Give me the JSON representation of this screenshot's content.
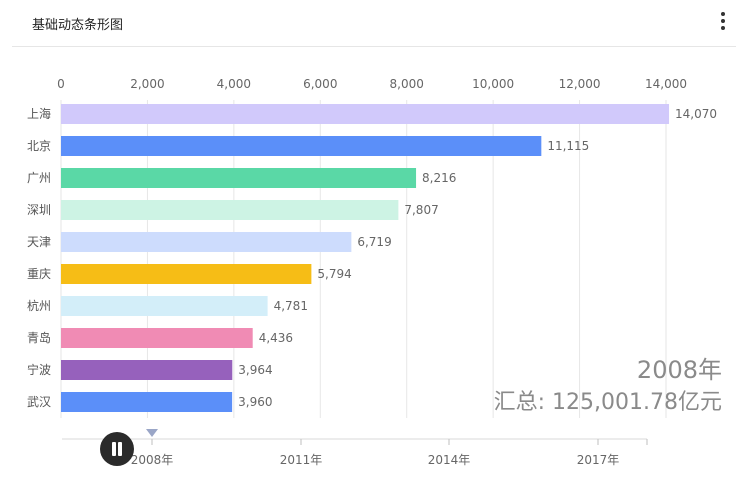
{
  "title": "基础动态条形图",
  "menu_icon": "more-vertical-icon",
  "play_icon": "pause-icon",
  "overlay": {
    "year": "2008年",
    "total": "汇总: 125,001.78亿元"
  },
  "timeline": {
    "labels": [
      "2008年",
      "2011年",
      "2014年",
      "2017年"
    ],
    "current": "2008年"
  },
  "chart_data": {
    "type": "bar",
    "orientation": "horizontal",
    "categories": [
      "上海",
      "北京",
      "广州",
      "深圳",
      "天津",
      "重庆",
      "杭州",
      "青岛",
      "宁波",
      "武汉"
    ],
    "values": [
      14070,
      11115,
      8216,
      7807,
      6719,
      5794,
      4781,
      4436,
      3964,
      3960
    ],
    "value_labels": [
      "14,070",
      "11,115",
      "8,216",
      "7,807",
      "6,719",
      "5,794",
      "4,781",
      "4,436",
      "3,964",
      "3,960"
    ],
    "colors": [
      "#d1c9fb",
      "#5b8ff9",
      "#5ad8a6",
      "#cdf3e4",
      "#cddcfd",
      "#f6bd16",
      "#d3eef9",
      "#f08bb4",
      "#9661bc",
      "#5b8ff9"
    ],
    "x_ticks": [
      0,
      2000,
      4000,
      6000,
      8000,
      10000,
      12000,
      14000
    ],
    "x_tick_labels": [
      "0",
      "2,000",
      "4,000",
      "6,000",
      "8,000",
      "10,000",
      "12,000",
      "14,000"
    ],
    "xlim": [
      0,
      14000
    ],
    "grid": true,
    "axis_position": "top"
  }
}
